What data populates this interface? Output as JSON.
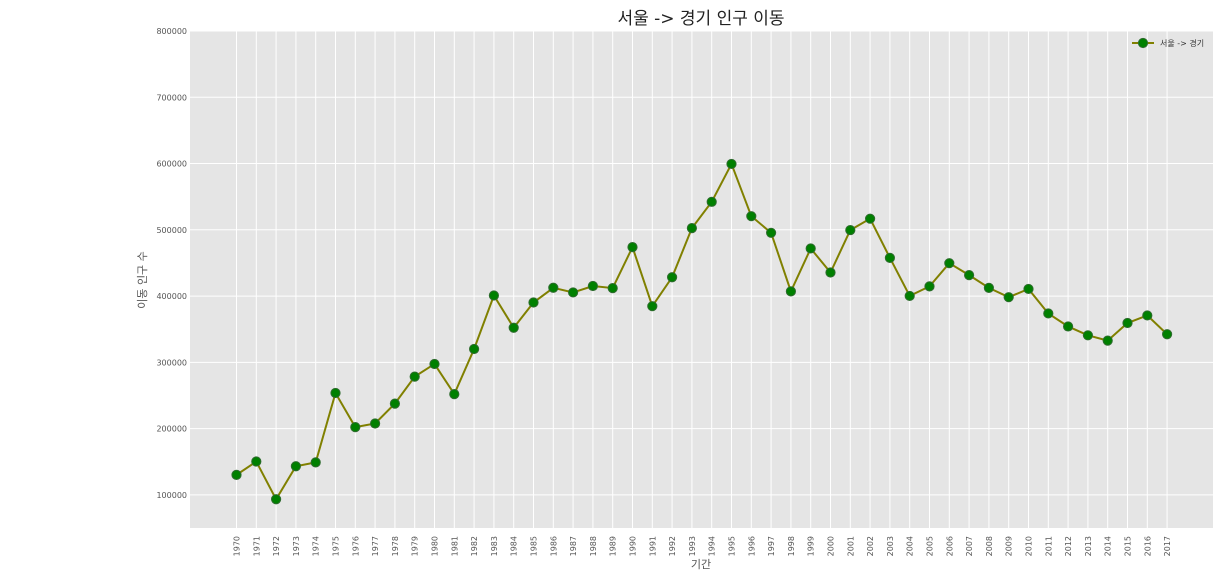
{
  "chart_data": {
    "type": "line",
    "title": "서울 -> 경기 인구 이동",
    "xlabel": "기간",
    "ylabel": "이동 인구 수",
    "ylim": [
      50000,
      800000
    ],
    "y_ticks": [
      100000,
      200000,
      300000,
      400000,
      500000,
      600000,
      700000,
      800000
    ],
    "grid": true,
    "legend_position": "top-right",
    "colors": {
      "background": "#e5e5e5",
      "grid": "#ffffff",
      "line": "#808000",
      "marker_face": "#008000",
      "marker_edge": "#2e6b2e"
    },
    "x": [
      "1970",
      "1971",
      "1972",
      "1973",
      "1974",
      "1975",
      "1976",
      "1977",
      "1978",
      "1979",
      "1980",
      "1981",
      "1982",
      "1983",
      "1984",
      "1985",
      "1986",
      "1987",
      "1988",
      "1989",
      "1990",
      "1991",
      "1992",
      "1993",
      "1994",
      "1995",
      "1996",
      "1997",
      "1998",
      "1999",
      "2000",
      "2001",
      "2002",
      "2003",
      "2004",
      "2005",
      "2006",
      "2007",
      "2008",
      "2009",
      "2010",
      "2011",
      "2012",
      "2013",
      "2014",
      "2015",
      "2016",
      "2017"
    ],
    "series": [
      {
        "name": "서울 -> 경기",
        "values": [
          130149,
          150313,
          93333,
          143234,
          149045,
          253705,
          202276,
          207722,
          237684,
          278411,
          297539,
          252073,
          320174,
          400875,
          352238,
          390265,
          412505,
          405495,
          415174,
          412021,
          473889,
          384714,
          428344,
          502561,
          542204,
          599411,
          520566,
          495454,
          407050,
          471841,
          435573,
          499575,
          516765,
          457656,
          400206,
          414621,
          449632,
          431637,
          412408,
          398282,
          410735,
          373771,
          354135,
          340801,
          332785,
          359337,
          370760,
          342433
        ]
      }
    ]
  }
}
